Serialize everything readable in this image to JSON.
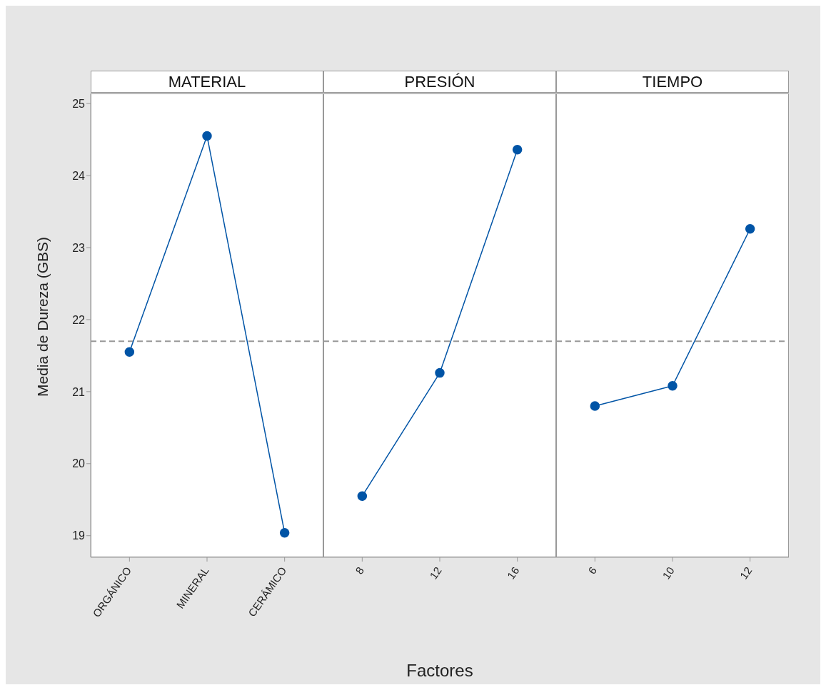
{
  "chart_data": [
    {
      "type": "line",
      "title": "MATERIAL",
      "ylabel": "Media de Dureza (GBS)",
      "categories": [
        "ORGÁNICO",
        "MINERAL",
        "CERÁMICO"
      ],
      "series": [
        {
          "color": "#0054a6",
          "values": [
            21.55,
            24.55,
            19.04
          ]
        }
      ],
      "ylim": [
        18.7,
        25.14
      ],
      "yticks": [
        19,
        20,
        21,
        22,
        23,
        24,
        25
      ],
      "ref_lines": [
        {
          "axis": "y",
          "value": 21.7,
          "color": "#999999",
          "line_style": "dashed"
        }
      ],
      "marker": "circle",
      "line_style": "solid",
      "grid": false,
      "legend": false
    },
    {
      "type": "line",
      "title": "PRESIÓN",
      "xlabel": "Factores",
      "categories": [
        "8",
        "12",
        "16"
      ],
      "series": [
        {
          "color": "#0054a6",
          "values": [
            19.55,
            21.26,
            24.36
          ]
        }
      ],
      "ylim": [
        18.7,
        25.14
      ],
      "yticks": [
        19,
        20,
        21,
        22,
        23,
        24,
        25
      ],
      "tick_labels": "x",
      "ref_lines": [
        {
          "axis": "y",
          "value": 21.7,
          "color": "#999999",
          "line_style": "dashed"
        }
      ],
      "marker": "circle",
      "line_style": "solid",
      "grid": false,
      "legend": false
    },
    {
      "type": "line",
      "title": "TIEMPO",
      "categories": [
        "6",
        "10",
        "12"
      ],
      "series": [
        {
          "color": "#0054a6",
          "values": [
            20.8,
            21.08,
            23.26
          ]
        }
      ],
      "ylim": [
        18.7,
        25.14
      ],
      "yticks": [
        19,
        20,
        21,
        22,
        23,
        24,
        25
      ],
      "tick_labels": "x",
      "ref_lines": [
        {
          "axis": "y",
          "value": 21.7,
          "color": "#999999",
          "line_style": "dashed"
        }
      ],
      "marker": "circle",
      "line_style": "solid",
      "grid": false,
      "legend": false
    }
  ]
}
